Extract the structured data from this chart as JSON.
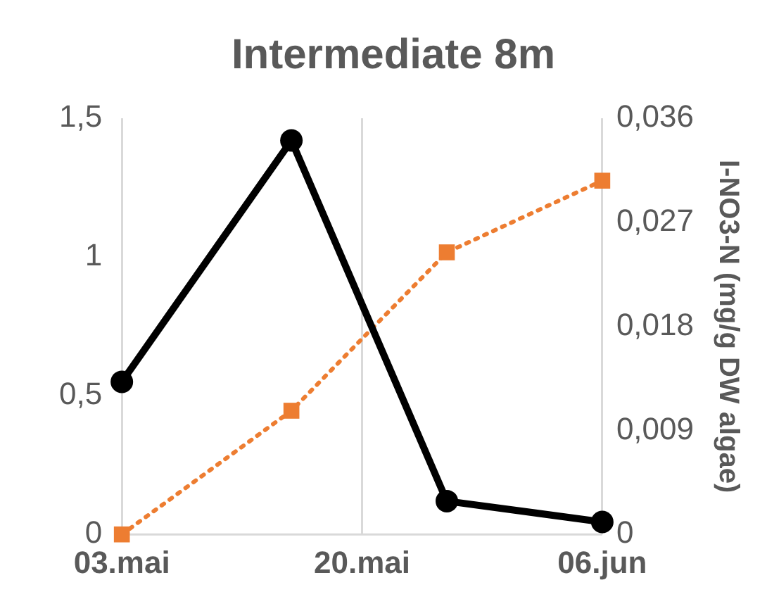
{
  "chart_data": {
    "type": "line",
    "title": "Intermediate 8m",
    "y2label": "I-NO3-N (mg/g DW algae)",
    "x": [
      "--05-03",
      "--05-15",
      "--05-26",
      "--06-06"
    ],
    "series": [
      {
        "color": "#000000",
        "values": [
          0.55,
          1.42,
          0.12,
          0.045
        ],
        "marker": "circle",
        "line_style": "solid"
      },
      {
        "color": "#ed7d31",
        "values": [
          0,
          0.0107,
          0.0244,
          0.0306
        ],
        "marker": "square",
        "line_style": "dotted",
        "axis": "y2"
      }
    ],
    "xlim": [
      "--05-03",
      "--06-06"
    ],
    "xticks": [
      {
        "value": "--05-03",
        "label": "03.mai"
      },
      {
        "value": "--05-20",
        "label": "20.mai"
      },
      {
        "value": "--06-06",
        "label": "06.jun"
      }
    ],
    "ylim": [
      0,
      1.5
    ],
    "yticks": [
      {
        "value": 0,
        "label": "0"
      },
      {
        "value": 0.5,
        "label": "0,5"
      },
      {
        "value": 1,
        "label": "1"
      },
      {
        "value": 1.5,
        "label": "1,5"
      }
    ],
    "y2lim": [
      0,
      0.036
    ],
    "y2ticks": [
      {
        "value": 0,
        "label": "0"
      },
      {
        "value": 0.009,
        "label": "0,009"
      },
      {
        "value": 0.018,
        "label": "0,018"
      },
      {
        "value": 0.027,
        "label": "0,027"
      },
      {
        "value": 0.036,
        "label": "0,036"
      }
    ],
    "grid": "x",
    "legend": false
  }
}
